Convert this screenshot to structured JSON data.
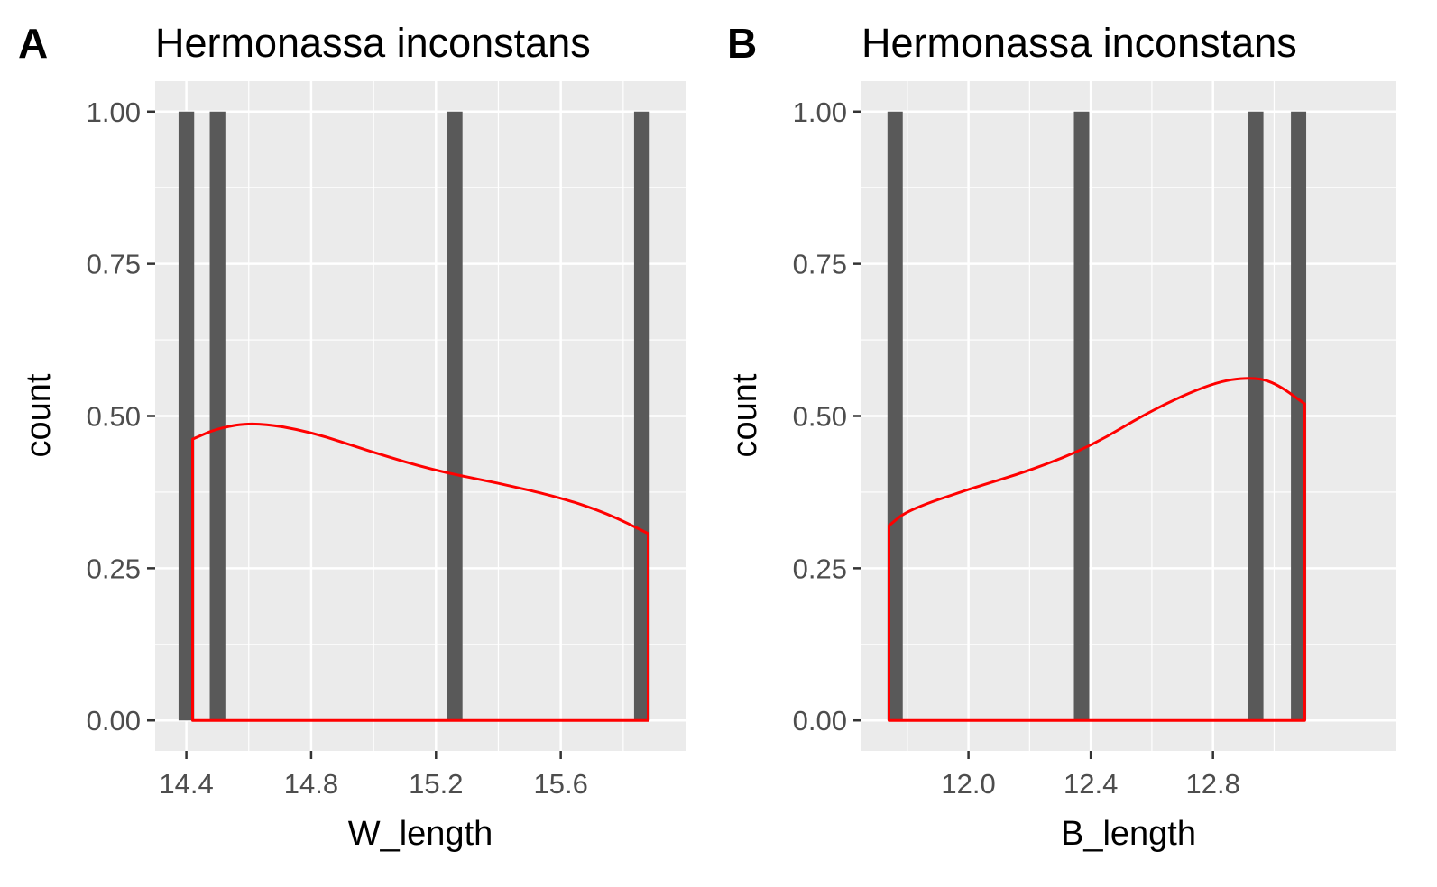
{
  "chart_data": [
    {
      "type": "bar",
      "panel_tag": "A",
      "title": "Hermonassa inconstans",
      "xlabel": "W_length",
      "ylabel": "count",
      "xlim": [
        14.3,
        16.0
      ],
      "ylim": [
        -0.05,
        1.05
      ],
      "xticks": [
        14.4,
        14.8,
        15.2,
        15.6
      ],
      "xtick_labels": [
        "14.4",
        "14.8",
        "15.2",
        "15.6"
      ],
      "yticks": [
        0,
        0.25,
        0.5,
        0.75,
        1
      ],
      "ytick_labels": [
        "0.00",
        "0.25",
        "0.50",
        "0.75",
        "1.00"
      ],
      "bar_width": 0.05,
      "bars": [
        {
          "x": 14.4,
          "count": 1
        },
        {
          "x": 14.5,
          "count": 1
        },
        {
          "x": 15.26,
          "count": 1
        },
        {
          "x": 15.86,
          "count": 1
        }
      ],
      "density": [
        [
          14.42,
          0.462
        ],
        [
          14.5,
          0.48
        ],
        [
          14.62,
          0.49
        ],
        [
          14.8,
          0.474
        ],
        [
          15.0,
          0.44
        ],
        [
          15.2,
          0.41
        ],
        [
          15.4,
          0.39
        ],
        [
          15.6,
          0.366
        ],
        [
          15.75,
          0.34
        ],
        [
          15.88,
          0.307
        ]
      ],
      "density_color": "#ff0000",
      "bar_color": "#595959",
      "grid": true
    },
    {
      "type": "bar",
      "panel_tag": "B",
      "title": "Hermonassa inconstans",
      "xlabel": "B_length",
      "ylabel": "count",
      "xlim": [
        11.65,
        13.4
      ],
      "ylim": [
        -0.05,
        1.05
      ],
      "xticks": [
        12.0,
        12.4,
        12.8
      ],
      "xtick_labels": [
        "12.0",
        "12.4",
        "12.8"
      ],
      "yticks": [
        0,
        0.25,
        0.5,
        0.75,
        1
      ],
      "ytick_labels": [
        "0.00",
        "0.25",
        "0.50",
        "0.75",
        "1.00"
      ],
      "bar_width": 0.05,
      "bars": [
        {
          "x": 11.76,
          "count": 1
        },
        {
          "x": 12.37,
          "count": 1
        },
        {
          "x": 12.94,
          "count": 1
        },
        {
          "x": 13.08,
          "count": 1
        }
      ],
      "density": [
        [
          11.74,
          0.32
        ],
        [
          11.8,
          0.345
        ],
        [
          12.0,
          0.38
        ],
        [
          12.2,
          0.41
        ],
        [
          12.4,
          0.45
        ],
        [
          12.6,
          0.51
        ],
        [
          12.8,
          0.555
        ],
        [
          12.92,
          0.564
        ],
        [
          13.0,
          0.556
        ],
        [
          13.1,
          0.52
        ]
      ],
      "density_color": "#ff0000",
      "bar_color": "#595959",
      "grid": true
    }
  ]
}
